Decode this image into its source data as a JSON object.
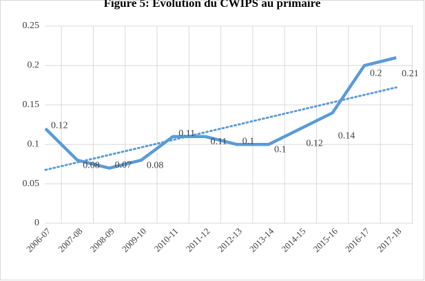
{
  "chart_data": {
    "type": "line",
    "title": "Figure 5: Evolution du CWIPS au primaire",
    "categories": [
      "2006-07",
      "2007-08",
      "2008-09",
      "2009-10",
      "2010-11",
      "2011-12",
      "2012-13",
      "2013-14",
      "2014-15",
      "2015-16",
      "2016-17",
      "2017-18"
    ],
    "values": [
      0.12,
      0.08,
      0.07,
      0.08,
      0.11,
      0.11,
      0.1,
      0.1,
      0.12,
      0.14,
      0.2,
      0.21
    ],
    "color": "#5b9bd5",
    "trendline": true,
    "ylim": [
      0,
      0.25
    ],
    "yticks": [
      0,
      0.05,
      0.1,
      0.15,
      0.2,
      0.25
    ],
    "grid": true
  }
}
